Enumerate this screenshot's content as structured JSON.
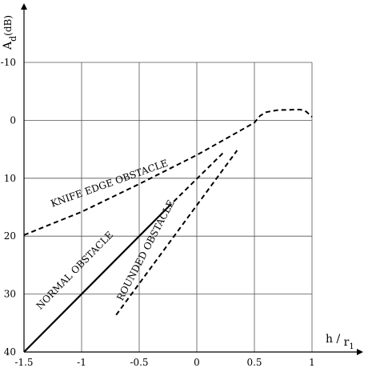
{
  "chart_data": {
    "type": "line",
    "title": "",
    "xlabel": "h /",
    "xlabel_sub": "r",
    "xlabel_subsub": "1",
    "ylabel": "A",
    "ylabel_sub": "d",
    "ylabel_unit": "(dB)",
    "xlim": [
      -1.5,
      1.0
    ],
    "ylim": [
      40,
      -10
    ],
    "y_inverted": true,
    "grid": true,
    "x_ticks": [
      -1.5,
      -1,
      -0.5,
      0,
      0.5,
      1
    ],
    "x_tick_labels": [
      "-1.5",
      "-1",
      "-0.5",
      "0",
      "0.5",
      "1"
    ],
    "y_ticks": [
      -10,
      0,
      10,
      20,
      30,
      40
    ],
    "y_tick_labels": [
      "-10",
      "0",
      "10",
      "20",
      "30",
      "40"
    ],
    "series": [
      {
        "name": "KNIFE EDGE OBSTACLE",
        "style": "dashed",
        "x": [
          -1.5,
          -1.25,
          -1.0,
          -0.75,
          -0.5,
          -0.25,
          0.0,
          0.25,
          0.5,
          0.55,
          0.6,
          0.65,
          0.7,
          0.75,
          0.8,
          0.85,
          0.9,
          0.95,
          1.0
        ],
        "y": [
          19.8,
          17.8,
          15.8,
          13.4,
          11.0,
          8.5,
          6.0,
          3.2,
          0.4,
          -0.8,
          -1.4,
          -1.6,
          -1.75,
          -1.8,
          -1.8,
          -1.85,
          -1.85,
          -1.5,
          -0.6
        ]
      },
      {
        "name": "NORMAL OBSTACLE",
        "style": "solid",
        "x": [
          -1.5,
          -0.25
        ],
        "y": [
          40,
          15
        ]
      },
      {
        "name": "",
        "style": "dashed",
        "x": [
          -0.25,
          0.23
        ],
        "y": [
          15,
          5.6
        ]
      },
      {
        "name": "ROUNDED OBSTACLE",
        "style": "dashed",
        "x": [
          -0.7,
          0.35
        ],
        "y": [
          33.6,
          5.2
        ]
      }
    ],
    "annotations": [
      {
        "text": "KNIFE EDGE OBSTACLE",
        "x": -0.75,
        "y": 11.4,
        "angle": -19.6
      },
      {
        "text": "NORMAL  OBSTACLE",
        "x": -1.04,
        "y": 26.3,
        "angle": -45.5
      },
      {
        "text": "ROUNDED OBSTACLE",
        "x": -0.42,
        "y": 22.7,
        "angle": -62.2
      }
    ]
  }
}
